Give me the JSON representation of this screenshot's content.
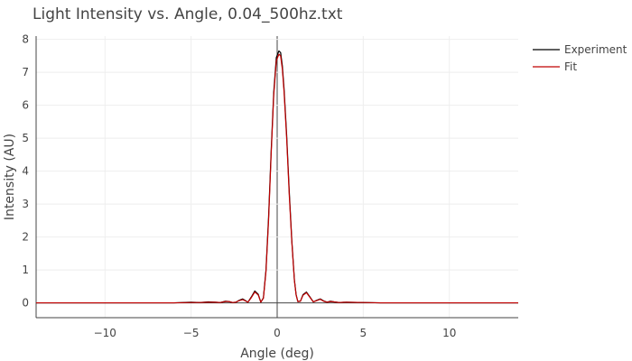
{
  "chart_data": {
    "type": "line",
    "title": "Light Intensity vs. Angle, 0.04_500hz.txt",
    "xlabel": "Angle (deg)",
    "ylabel": "Intensity (AU)",
    "xlim": [
      -14,
      14
    ],
    "ylim": [
      -0.45,
      8.1
    ],
    "xticks": [
      -10,
      -5,
      0,
      5,
      10
    ],
    "yticks": [
      0,
      1,
      2,
      3,
      4,
      5,
      6,
      7,
      8
    ],
    "grid": true,
    "legend_position": "top-right",
    "series": [
      {
        "name": "Experiment",
        "color": "#000000",
        "x": [
          -14,
          -10,
          -6,
          -5,
          -4.5,
          -4,
          -3.6,
          -3.3,
          -3.0,
          -2.8,
          -2.6,
          -2.4,
          -2.2,
          -2.0,
          -1.85,
          -1.7,
          -1.5,
          -1.3,
          -1.1,
          -0.95,
          -0.8,
          -0.65,
          -0.5,
          -0.35,
          -0.2,
          -0.05,
          0.1,
          0.2,
          0.3,
          0.4,
          0.55,
          0.7,
          0.85,
          1.0,
          1.1,
          1.2,
          1.35,
          1.5,
          1.7,
          1.9,
          2.1,
          2.3,
          2.5,
          2.7,
          2.9,
          3.1,
          3.3,
          3.6,
          4.0,
          5.0,
          6.0,
          10.0,
          14.0
        ],
        "y": [
          0,
          0,
          0,
          0.02,
          0.01,
          0.03,
          0.02,
          0.01,
          0.05,
          0.04,
          0.01,
          0.02,
          0.08,
          0.12,
          0.07,
          0.02,
          0.18,
          0.36,
          0.26,
          0.02,
          0.15,
          1.0,
          2.6,
          4.6,
          6.4,
          7.45,
          7.65,
          7.6,
          7.2,
          6.5,
          5.1,
          3.4,
          1.9,
          0.7,
          0.25,
          0.04,
          0.05,
          0.25,
          0.33,
          0.18,
          0.03,
          0.08,
          0.12,
          0.06,
          0.02,
          0.05,
          0.03,
          0.01,
          0.02,
          0.01,
          0,
          0,
          0
        ]
      },
      {
        "name": "Fit",
        "color": "#c00000",
        "x": [
          -14,
          -10,
          -6,
          -5,
          -4.5,
          -4,
          -3.6,
          -3.3,
          -3.0,
          -2.8,
          -2.6,
          -2.4,
          -2.2,
          -2.0,
          -1.85,
          -1.7,
          -1.5,
          -1.3,
          -1.1,
          -0.95,
          -0.8,
          -0.65,
          -0.5,
          -0.35,
          -0.2,
          -0.05,
          0.1,
          0.2,
          0.3,
          0.4,
          0.55,
          0.7,
          0.85,
          1.0,
          1.1,
          1.2,
          1.35,
          1.5,
          1.7,
          1.9,
          2.1,
          2.3,
          2.5,
          2.7,
          2.9,
          3.1,
          3.3,
          3.6,
          4.0,
          5.0,
          6.0,
          10.0,
          14.0
        ],
        "y": [
          0,
          0,
          0,
          0.01,
          0.01,
          0.02,
          0.02,
          0.01,
          0.04,
          0.04,
          0.01,
          0.02,
          0.07,
          0.1,
          0.06,
          0.02,
          0.16,
          0.33,
          0.24,
          0.02,
          0.14,
          0.95,
          2.5,
          4.5,
          6.3,
          7.35,
          7.55,
          7.5,
          7.1,
          6.4,
          5.0,
          3.3,
          1.85,
          0.68,
          0.24,
          0.04,
          0.05,
          0.23,
          0.31,
          0.17,
          0.03,
          0.07,
          0.11,
          0.05,
          0.02,
          0.04,
          0.03,
          0.01,
          0.02,
          0.01,
          0,
          0,
          0
        ]
      }
    ]
  }
}
